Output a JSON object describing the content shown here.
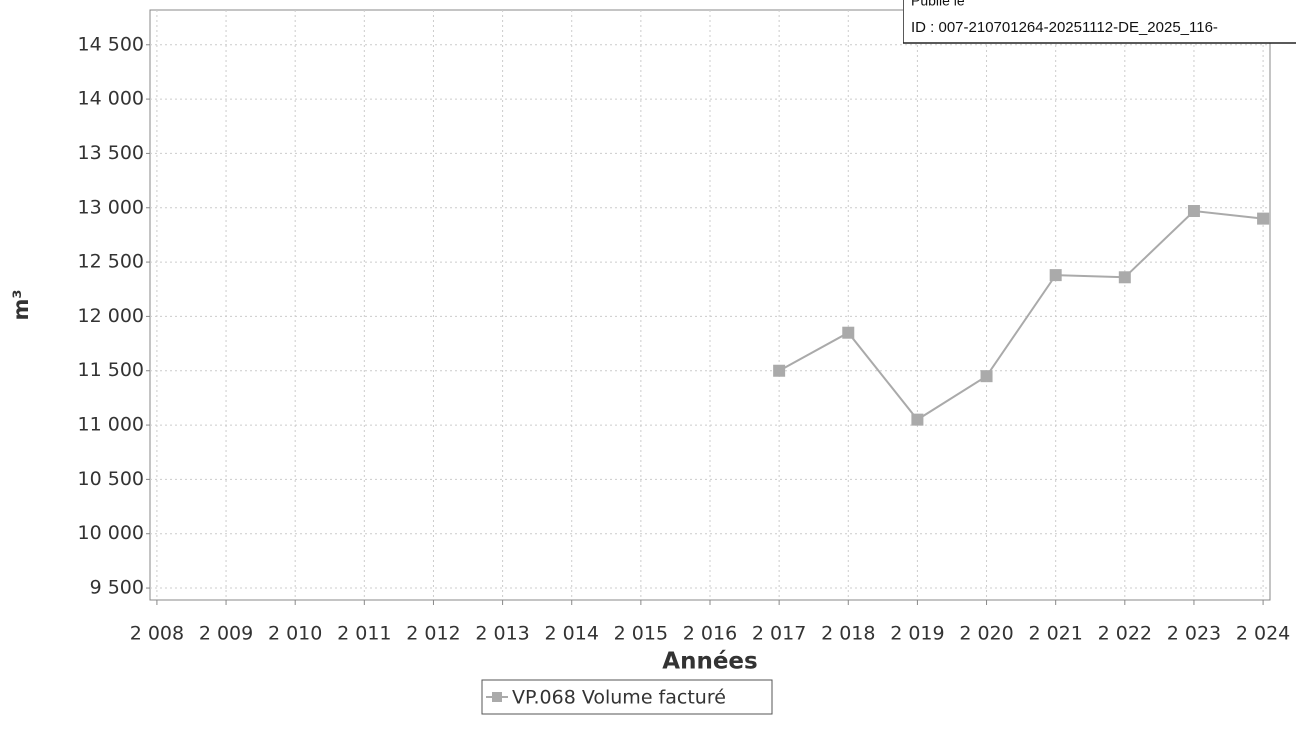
{
  "chart_data": {
    "type": "line",
    "x_label": "Années",
    "y_label": "m³",
    "x": [
      2017,
      2018,
      2019,
      2020,
      2021,
      2022,
      2023,
      2024
    ],
    "series": [
      {
        "name": "VP.068 Volume facturé",
        "color": "#aaaaaa",
        "values": [
          11500,
          11850,
          11050,
          11450,
          12380,
          12360,
          12970,
          12900
        ]
      }
    ],
    "xlim": [
      2007.9,
      2024.1
    ],
    "xticks": [
      {
        "value": 2008,
        "label": "2 008"
      },
      {
        "value": 2009,
        "label": "2 009"
      },
      {
        "value": 2010,
        "label": "2 010"
      },
      {
        "value": 2011,
        "label": "2 011"
      },
      {
        "value": 2012,
        "label": "2 012"
      },
      {
        "value": 2013,
        "label": "2 013"
      },
      {
        "value": 2014,
        "label": "2 014"
      },
      {
        "value": 2015,
        "label": "2 015"
      },
      {
        "value": 2016,
        "label": "2 016"
      },
      {
        "value": 2017,
        "label": "2 017"
      },
      {
        "value": 2018,
        "label": "2 018"
      },
      {
        "value": 2019,
        "label": "2 019"
      },
      {
        "value": 2020,
        "label": "2 020"
      },
      {
        "value": 2021,
        "label": "2 021"
      },
      {
        "value": 2022,
        "label": "2 022"
      },
      {
        "value": 2023,
        "label": "2 023"
      },
      {
        "value": 2024,
        "label": "2 024"
      }
    ],
    "ylim": [
      9390,
      14820
    ],
    "yticks": [
      {
        "value": 9500,
        "label": "9 500"
      },
      {
        "value": 10000,
        "label": "10 000"
      },
      {
        "value": 10500,
        "label": "10 500"
      },
      {
        "value": 11000,
        "label": "11 000"
      },
      {
        "value": 11500,
        "label": "11 500"
      },
      {
        "value": 12000,
        "label": "12 000"
      },
      {
        "value": 12500,
        "label": "12 500"
      },
      {
        "value": 13000,
        "label": "13 000"
      },
      {
        "value": 13500,
        "label": "13 500"
      },
      {
        "value": 14000,
        "label": "14 000"
      },
      {
        "value": 14500,
        "label": "14 500"
      }
    ],
    "grid": true,
    "legend": "bottom",
    "annotations": [
      "Publié le",
      "ID : 007-210701264-20251112-DE_2025_116-"
    ]
  }
}
